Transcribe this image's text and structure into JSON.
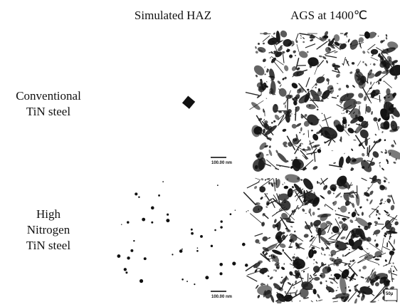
{
  "columns": [
    "Simulated HAZ",
    "AGS at 1400℃"
  ],
  "rows": [
    {
      "label_lines": [
        "Conventional",
        "TiN steel"
      ],
      "scale_bar": "100.00 nm"
    },
    {
      "label_lines": [
        "High",
        "Nitrogen",
        "TiN steel"
      ],
      "scale_bar": "100.00 nm",
      "micro_scale_bar": "50μ"
    }
  ]
}
